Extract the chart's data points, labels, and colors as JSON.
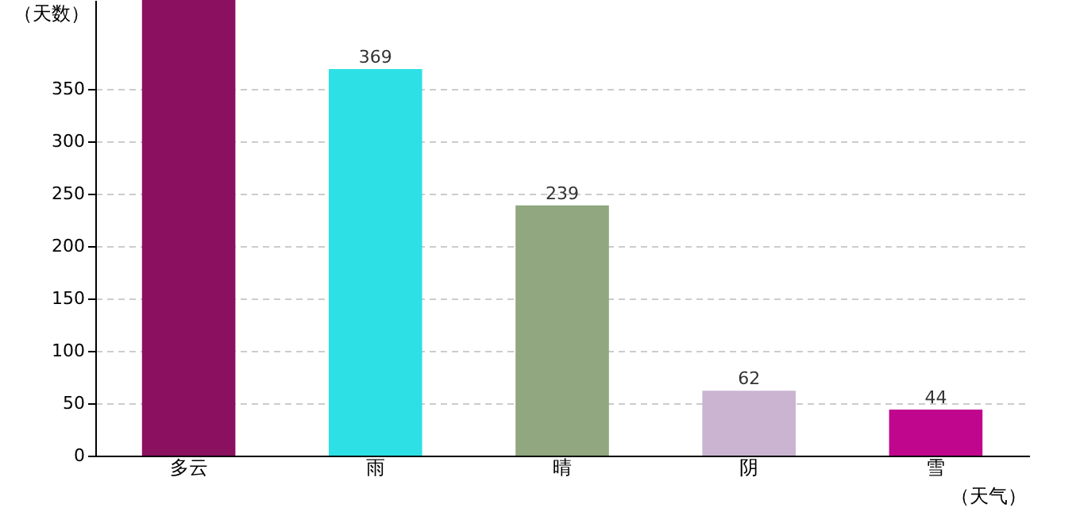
{
  "chart_data": {
    "type": "bar",
    "xlabel": "（天气）",
    "ylabel": "（天数）",
    "categories": [
      "多云",
      "雨",
      "晴",
      "阴",
      "雪"
    ],
    "values": [
      435,
      369,
      239,
      62,
      44
    ],
    "colors": [
      "#8b1060",
      "#2de0e6",
      "#90a77f",
      "#cab4d2",
      "#c1068e"
    ],
    "value_labels": [
      null,
      "369",
      "239",
      "62",
      "44"
    ],
    "ylim": [
      0,
      435
    ],
    "yticks": [
      0,
      50,
      100,
      150,
      200,
      250,
      300,
      350
    ],
    "grid": "y",
    "line_style": "dashed"
  }
}
